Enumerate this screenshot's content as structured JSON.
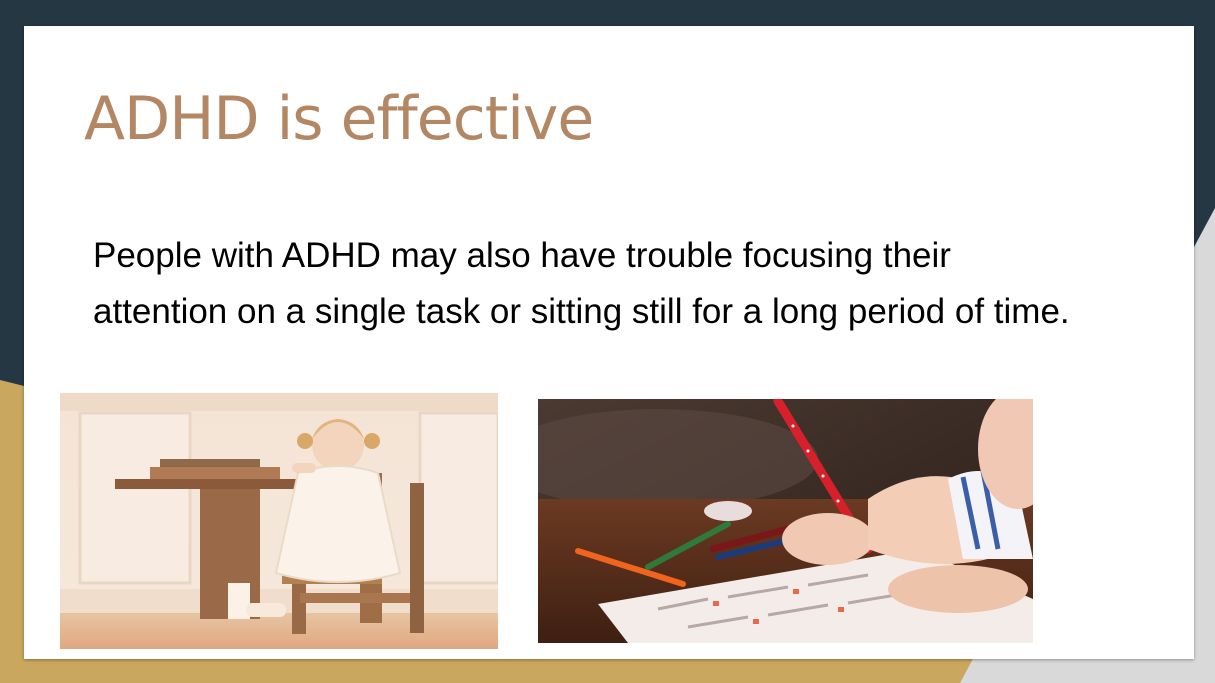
{
  "slide": {
    "title": "ADHD is effective",
    "body": "People with ADHD may also have trouble focusing their attention on a single task or sitting still for a long period of time."
  },
  "images": [
    {
      "name": "photo-girl-on-desk-chair"
    },
    {
      "name": "photo-child-writing"
    }
  ],
  "colors": {
    "background_dark": "#243743",
    "accent_gold": "#c9a75f",
    "accent_gray": "#d9d9d9",
    "title": "#b38763",
    "body_text": "#000000"
  }
}
